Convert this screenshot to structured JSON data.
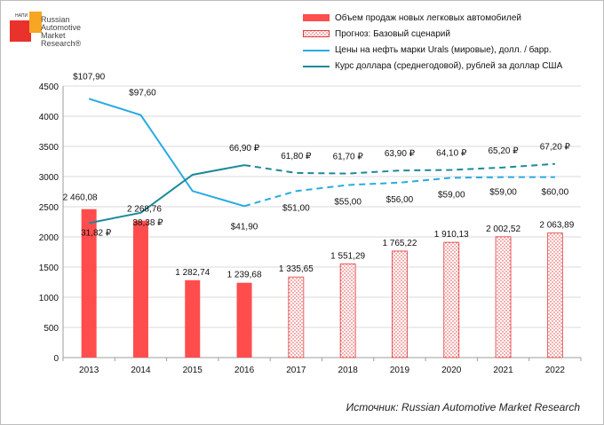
{
  "logo": {
    "small_text": "НАПИ",
    "text_lines": [
      "Russian",
      "Automotive",
      "Market",
      "Research®"
    ]
  },
  "legend": {
    "sales": "Объем продаж новых легковых автомобилей",
    "forecast": "Прогноз: Базовый сценарий",
    "oil": "Цены на нефть марки Urals (мировые), долл. / барр.",
    "usd": "Курс доллара (среднегодовой), рублей за доллар США"
  },
  "source": "Источник: Russian Automotive Market Research",
  "colors": {
    "bar": "#ff4d4d",
    "forecast_dots": "#e23a3a",
    "oil": "#29abe2",
    "usd": "#1b8a9a",
    "grid": "#d9d9d9",
    "axis": "#9c9c9c"
  },
  "chart_data": {
    "type": "bar",
    "categories": [
      "2013",
      "2014",
      "2015",
      "2016",
      "2017",
      "2018",
      "2019",
      "2020",
      "2021",
      "2022"
    ],
    "ylim": [
      0,
      4500
    ],
    "yticks": [
      0,
      500,
      1000,
      1500,
      2000,
      2500,
      3000,
      3500,
      4000,
      4500
    ],
    "grid": true,
    "legend_position": "top-right",
    "sales": {
      "values": [
        2460.08,
        2268.76,
        1282.74,
        1239.68,
        1335.65,
        1551.29,
        1765.22,
        1910.13,
        2002.52,
        2063.89
      ],
      "labels": [
        "2 460,08",
        "2 268,76",
        "1 282,74",
        "1 239,68",
        "1 335,65",
        "1 551,29",
        "1 765,22",
        "1 910,13",
        "2 002,52",
        "2 063,89"
      ],
      "forecast_from_index": 4
    },
    "oil": {
      "labels": [
        "$107,90",
        "$97,60",
        "",
        "$41,90",
        "$51,00",
        "$55,00",
        "$56,00",
        "$59,00",
        "$59,00",
        "$60,00"
      ],
      "plotted": [
        4290,
        4020,
        2760,
        2510,
        2760,
        2860,
        2900,
        2980,
        2990,
        2990
      ],
      "forecast_from_index": 3
    },
    "usd": {
      "labels": [
        "31,82 ₽",
        "38,38 ₽",
        "",
        "66,90 ₽",
        "61,80 ₽",
        "61,70 ₽",
        "63,90 ₽",
        "64,10 ₽",
        "65,20 ₽",
        "67,20 ₽"
      ],
      "plotted": [
        2230,
        2400,
        3030,
        3190,
        3060,
        3050,
        3100,
        3110,
        3150,
        3210
      ],
      "forecast_from_index": 3
    }
  }
}
